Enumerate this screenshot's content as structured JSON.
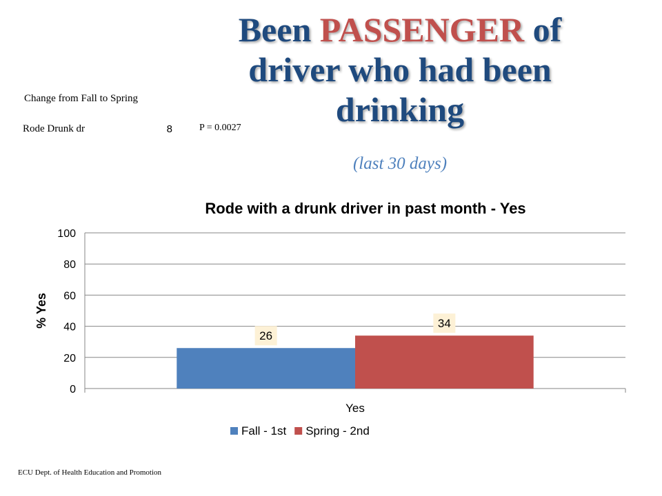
{
  "title": {
    "prefix": "Been ",
    "highlight": "PASSENGER",
    "suffix": " of driver who had been drinking",
    "subtitle": "(last 30 days)"
  },
  "side_table": {
    "header": "Change  from Fall to Spring",
    "row_label": "Rode Drunk dr",
    "row_value": "8",
    "p_value": "P = 0.0027"
  },
  "footer": "ECU Dept. of Health Education and Promotion",
  "colors": {
    "title": "#1f4a7e",
    "title_highlight": "#c0504d",
    "subtitle": "#4f81bd",
    "data_label_bg": "#fdf1d6"
  },
  "chart_data": {
    "type": "bar",
    "title": "Rode with a drunk driver in past month - Yes",
    "xlabel": "",
    "ylabel": "% Yes",
    "categories": [
      "Yes"
    ],
    "series": [
      {
        "name": "Fall - 1st",
        "values": [
          26
        ],
        "color": "#4f81bd"
      },
      {
        "name": "Spring - 2nd",
        "values": [
          34
        ],
        "color": "#c0504d"
      }
    ],
    "ylim": [
      0,
      100
    ],
    "yticks": [
      0,
      20,
      40,
      60,
      80,
      100
    ],
    "grid": true,
    "legend_position": "bottom",
    "data_labels": true
  }
}
